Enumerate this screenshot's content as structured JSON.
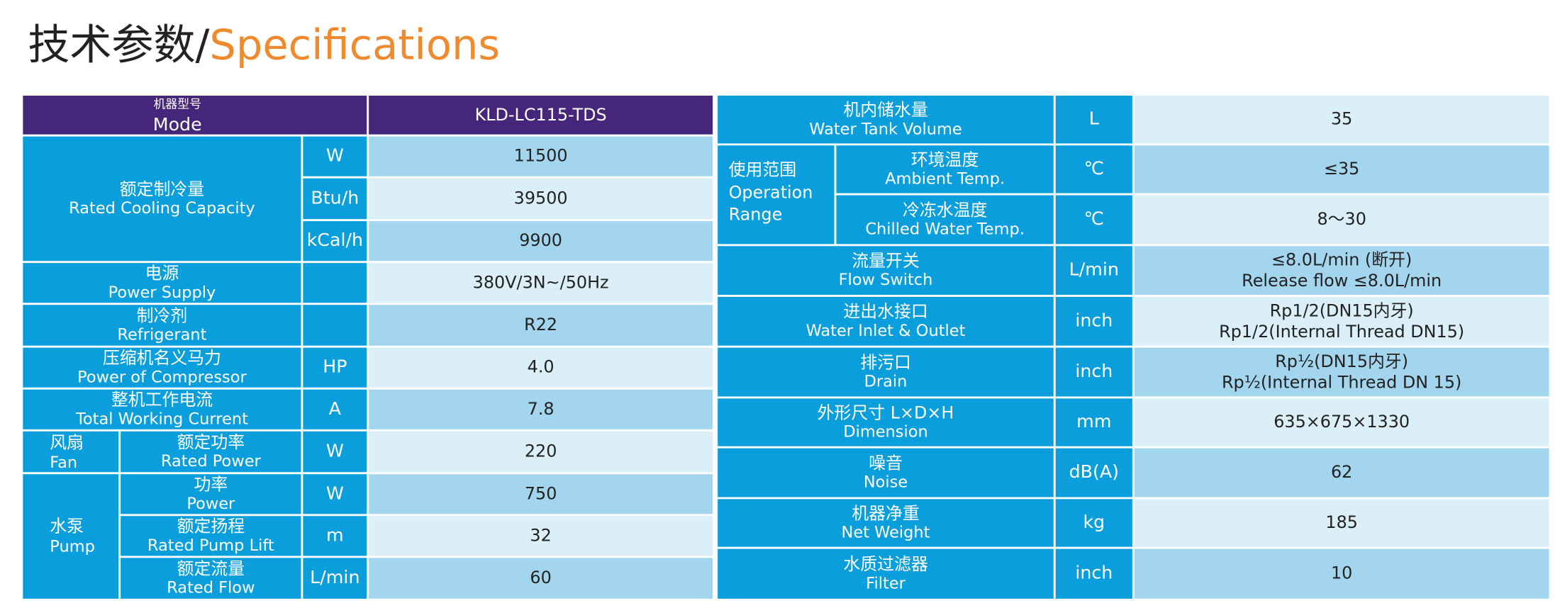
{
  "header": {
    "title_cn": "技术参数/",
    "title_en": "Specifications"
  },
  "left_table": {
    "header": {
      "label_cn": "机器型号",
      "label_en": "Mode",
      "value": "KLD-LC115-TDS"
    },
    "cooling": {
      "label_cn": "额定制冷量",
      "label_en": "Rated Cooling Capacity",
      "units": [
        "W",
        "Btu/h",
        "kCal/h"
      ],
      "values": [
        "11500",
        "39500",
        "9900"
      ]
    },
    "rows": [
      {
        "label_cn": "电源",
        "label_en": "Power Supply",
        "value": "380V/3N~/50Hz"
      },
      {
        "label_cn": "制冷剂",
        "label_en": "Refrigerant",
        "value": "R22"
      },
      {
        "label_cn": "压缩机名义马力",
        "label_en": "Power of Compressor",
        "unit": "HP",
        "value": "4.0"
      },
      {
        "label_cn": "整机工作电流",
        "label_en": "Total Working Current",
        "unit": "A",
        "value": "7.8"
      }
    ],
    "fan": {
      "group_cn": "风扇",
      "group_en": "Fan",
      "label_cn": "额定功率",
      "label_en": "Rated Power",
      "unit": "W",
      "value": "220"
    },
    "pump": {
      "group_cn": "水泵",
      "group_en": "Pump",
      "items": [
        {
          "label_cn": "功率",
          "label_en": "Power",
          "unit": "W",
          "value": "750"
        },
        {
          "label_cn": "额定扬程",
          "label_en": "Rated Pump Lift",
          "unit": "m",
          "value": "32"
        },
        {
          "label_cn": "额定流量",
          "label_en": "Rated Flow",
          "unit": "L/min",
          "value": "60"
        }
      ]
    }
  },
  "right_table": {
    "tank": {
      "label_cn": "机内储水量",
      "label_en": "Water Tank Volume",
      "unit": "L",
      "value": "35"
    },
    "range": {
      "group_cn": "使用范围",
      "group_en": [
        "Operation",
        "Range"
      ],
      "items": [
        {
          "label_cn": "环境温度",
          "label_en": "Ambient Temp.",
          "unit": "℃",
          "value": "≤35"
        },
        {
          "label_cn": "冷冻水温度",
          "label_en": "Chilled Water Temp.",
          "unit": "℃",
          "value": "8～30"
        }
      ]
    },
    "rows": [
      {
        "label_cn": "流量开关",
        "label_en": "Flow Switch",
        "unit": "L/min",
        "value_lines": [
          "≤8.0L/min (断开)",
          "Release flow ≤8.0L/min"
        ]
      },
      {
        "label_cn": "进出水接口",
        "label_en": "Water Inlet & Outlet",
        "unit": "inch",
        "value_lines": [
          "Rp1/2(DN15内牙)",
          "Rp1/2(Internal Thread DN15)"
        ]
      },
      {
        "label_cn": "排污口",
        "label_en": "Drain",
        "unit": "inch",
        "value_lines": [
          "Rp½(DN15内牙)",
          "Rp½(Internal Thread DN 15)"
        ]
      },
      {
        "label_cn": "外形尺寸 L×D×H",
        "label_en": "Dimension",
        "unit": "mm",
        "value": "635×675×1330"
      },
      {
        "label_cn": "噪音",
        "label_en": "Noise",
        "unit": "dB(A)",
        "value": "62"
      },
      {
        "label_cn": "机器净重",
        "label_en": "Net Weight",
        "unit": "kg",
        "value": "185"
      },
      {
        "label_cn": "水质过滤器",
        "label_en": "Filter",
        "unit": "inch",
        "value": "10"
      }
    ]
  }
}
